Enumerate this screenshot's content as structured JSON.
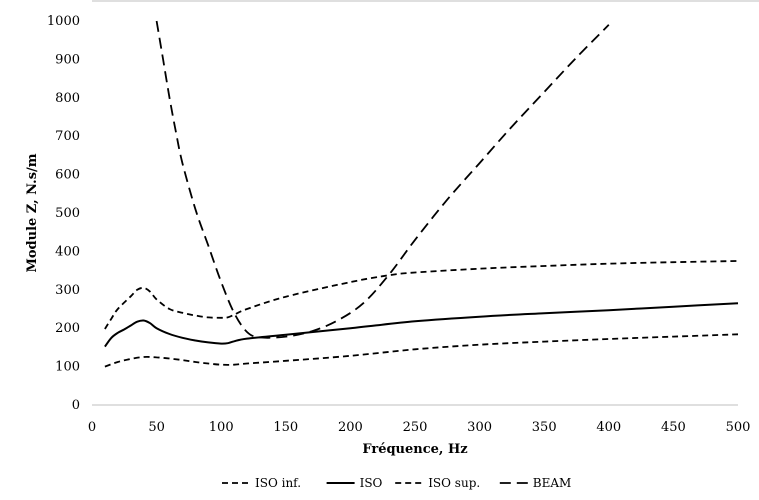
{
  "chart_data": {
    "type": "line",
    "title": "",
    "xlabel": "Fréquence, Hz",
    "ylabel": "Module Z, N.s/m",
    "xlim": [
      0,
      500
    ],
    "ylim": [
      0,
      1000
    ],
    "xticks": [
      0,
      50,
      100,
      150,
      200,
      250,
      300,
      350,
      400,
      450,
      500
    ],
    "yticks": [
      0,
      100,
      200,
      300,
      400,
      500,
      600,
      700,
      800,
      900,
      1000
    ],
    "grid": false,
    "legend": "bottom",
    "series": [
      {
        "name": "ISO inf.",
        "style": "short-dash",
        "points": [
          [
            10,
            100
          ],
          [
            20,
            112
          ],
          [
            30,
            120
          ],
          [
            40,
            125
          ],
          [
            50,
            124
          ],
          [
            60,
            121
          ],
          [
            70,
            117
          ],
          [
            80,
            112
          ],
          [
            90,
            108
          ],
          [
            100,
            105
          ],
          [
            110,
            105
          ],
          [
            120,
            108
          ],
          [
            150,
            115
          ],
          [
            200,
            128
          ],
          [
            250,
            145
          ],
          [
            300,
            157
          ],
          [
            350,
            165
          ],
          [
            400,
            172
          ],
          [
            450,
            178
          ],
          [
            500,
            184
          ]
        ]
      },
      {
        "name": "ISO",
        "style": "solid",
        "points": [
          [
            10,
            152
          ],
          [
            15,
            175
          ],
          [
            20,
            188
          ],
          [
            25,
            197
          ],
          [
            30,
            207
          ],
          [
            35,
            217
          ],
          [
            40,
            220
          ],
          [
            45,
            213
          ],
          [
            50,
            200
          ],
          [
            60,
            185
          ],
          [
            70,
            175
          ],
          [
            80,
            168
          ],
          [
            90,
            163
          ],
          [
            100,
            160
          ],
          [
            105,
            161
          ],
          [
            110,
            166
          ],
          [
            120,
            173
          ],
          [
            150,
            183
          ],
          [
            200,
            200
          ],
          [
            250,
            218
          ],
          [
            300,
            230
          ],
          [
            350,
            239
          ],
          [
            400,
            247
          ],
          [
            450,
            256
          ],
          [
            500,
            265
          ]
        ]
      },
      {
        "name": "ISO sup.",
        "style": "short-dash",
        "points": [
          [
            10,
            198
          ],
          [
            15,
            225
          ],
          [
            20,
            250
          ],
          [
            30,
            283
          ],
          [
            35,
            300
          ],
          [
            40,
            305
          ],
          [
            45,
            295
          ],
          [
            50,
            275
          ],
          [
            60,
            250
          ],
          [
            70,
            240
          ],
          [
            80,
            233
          ],
          [
            90,
            228
          ],
          [
            100,
            227
          ],
          [
            105,
            228
          ],
          [
            110,
            235
          ],
          [
            120,
            250
          ],
          [
            150,
            282
          ],
          [
            200,
            320
          ],
          [
            230,
            338
          ],
          [
            250,
            345
          ],
          [
            300,
            355
          ],
          [
            350,
            362
          ],
          [
            400,
            368
          ],
          [
            450,
            372
          ],
          [
            500,
            375
          ]
        ]
      },
      {
        "name": "BEAM",
        "style": "long-dash",
        "points": [
          [
            50,
            1000
          ],
          [
            55,
            900
          ],
          [
            60,
            800
          ],
          [
            65,
            710
          ],
          [
            70,
            630
          ],
          [
            80,
            510
          ],
          [
            90,
            415
          ],
          [
            100,
            320
          ],
          [
            110,
            240
          ],
          [
            120,
            190
          ],
          [
            130,
            176
          ],
          [
            150,
            178
          ],
          [
            170,
            192
          ],
          [
            190,
            220
          ],
          [
            210,
            265
          ],
          [
            230,
            340
          ],
          [
            250,
            430
          ],
          [
            275,
            535
          ],
          [
            300,
            630
          ],
          [
            325,
            725
          ],
          [
            350,
            815
          ],
          [
            375,
            905
          ],
          [
            400,
            990
          ]
        ]
      }
    ]
  }
}
